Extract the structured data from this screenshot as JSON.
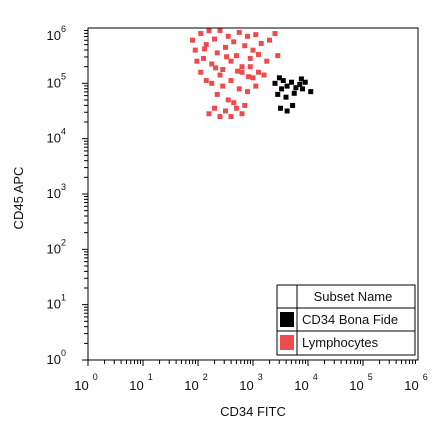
{
  "chart_data": {
    "type": "scatter",
    "xlabel": "CD34 FITC",
    "ylabel": "CD45 APC",
    "x_scale": "log",
    "y_scale": "log",
    "xlim_log10": [
      0,
      6
    ],
    "ylim_log10": [
      0,
      6
    ],
    "x_ticks": [
      {
        "base": "10",
        "exp": "0"
      },
      {
        "base": "10",
        "exp": "1"
      },
      {
        "base": "10",
        "exp": "2"
      },
      {
        "base": "10",
        "exp": "3"
      },
      {
        "base": "10",
        "exp": "4"
      },
      {
        "base": "10",
        "exp": "5"
      },
      {
        "base": "10",
        "exp": "6"
      }
    ],
    "y_ticks": [
      {
        "base": "10",
        "exp": "0"
      },
      {
        "base": "10",
        "exp": "1"
      },
      {
        "base": "10",
        "exp": "2"
      },
      {
        "base": "10",
        "exp": "3"
      },
      {
        "base": "10",
        "exp": "4"
      },
      {
        "base": "10",
        "exp": "5"
      },
      {
        "base": "10",
        "exp": "6"
      }
    ],
    "grid": false,
    "legend": {
      "placement": "bottom-right",
      "title": "Subset Name",
      "entries": [
        {
          "name": "CD34 Bona Fide",
          "color": "#000000"
        },
        {
          "name": "Lymphocytes",
          "color": "#ee4b4f"
        }
      ]
    },
    "series": [
      {
        "name": "CD34 Bona Fide",
        "color": "#000000",
        "points_log10": [
          [
            3.4,
            5.0
          ],
          [
            3.48,
            5.1
          ],
          [
            3.55,
            5.05
          ],
          [
            3.62,
            4.95
          ],
          [
            3.7,
            5.02
          ],
          [
            3.78,
            4.92
          ],
          [
            3.85,
            4.98
          ],
          [
            3.9,
            4.9
          ],
          [
            3.95,
            5.02
          ],
          [
            4.05,
            4.85
          ],
          [
            3.45,
            4.8
          ],
          [
            3.6,
            4.75
          ],
          [
            3.75,
            4.82
          ],
          [
            3.5,
            4.55
          ],
          [
            3.62,
            4.5
          ],
          [
            3.72,
            4.6
          ],
          [
            3.88,
            5.08
          ],
          [
            3.52,
            4.9
          ]
        ]
      },
      {
        "name": "Lymphocytes",
        "color": "#ee4b4f",
        "cluster": {
          "x_center_log10": 2.6,
          "y_center_log10": 5.55,
          "x_spread": 0.5,
          "y_spread": 0.5
        },
        "points_log10": [
          [
            1.9,
            5.78
          ],
          [
            1.95,
            5.6
          ],
          [
            2.05,
            5.9
          ],
          [
            2.1,
            5.45
          ],
          [
            2.15,
            5.7
          ],
          [
            2.2,
            5.95
          ],
          [
            2.25,
            5.35
          ],
          [
            2.3,
            5.8
          ],
          [
            2.35,
            5.55
          ],
          [
            2.4,
            5.98
          ],
          [
            2.45,
            5.25
          ],
          [
            2.5,
            5.65
          ],
          [
            2.55,
            5.85
          ],
          [
            2.6,
            5.4
          ],
          [
            2.65,
            5.75
          ],
          [
            2.7,
            5.5
          ],
          [
            2.75,
            5.92
          ],
          [
            2.8,
            5.3
          ],
          [
            2.85,
            5.68
          ],
          [
            2.9,
            5.85
          ],
          [
            2.95,
            5.45
          ],
          [
            3.0,
            5.6
          ],
          [
            3.05,
            5.88
          ],
          [
            3.1,
            5.52
          ],
          [
            3.15,
            5.72
          ],
          [
            2.2,
            4.45
          ],
          [
            2.3,
            4.55
          ],
          [
            2.4,
            4.4
          ],
          [
            2.5,
            4.5
          ],
          [
            2.6,
            4.4
          ],
          [
            2.7,
            4.55
          ],
          [
            2.8,
            4.45
          ],
          [
            2.35,
            4.8
          ],
          [
            2.55,
            4.7
          ],
          [
            2.75,
            4.9
          ],
          [
            2.9,
            4.85
          ],
          [
            3.0,
            5.1
          ],
          [
            3.1,
            5.2
          ],
          [
            3.25,
            5.4
          ],
          [
            3.3,
            5.78
          ],
          [
            3.4,
            5.9
          ],
          [
            3.45,
            5.5
          ],
          [
            3.2,
            5.15
          ],
          [
            2.05,
            5.2
          ],
          [
            2.15,
            5.05
          ],
          [
            2.25,
            5.0
          ],
          [
            2.45,
            4.95
          ],
          [
            2.65,
            4.65
          ],
          [
            2.85,
            4.6
          ],
          [
            3.05,
            4.95
          ],
          [
            2.4,
            5.15
          ],
          [
            2.6,
            5.05
          ],
          [
            2.8,
            5.2
          ],
          [
            2.95,
            5.3
          ],
          [
            1.98,
            5.4
          ],
          [
            2.12,
            5.62
          ],
          [
            2.32,
            5.28
          ],
          [
            2.52,
            5.48
          ],
          [
            2.72,
            5.22
          ],
          [
            2.92,
            5.12
          ]
        ]
      }
    ]
  }
}
